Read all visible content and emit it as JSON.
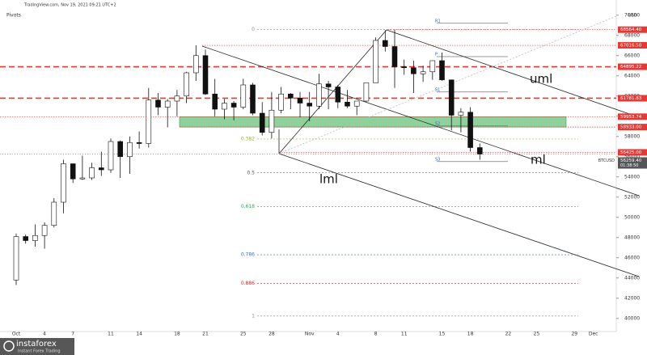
{
  "chart_data": {
    "type": "candlestick",
    "header": "TradingView.com, Nov 19, 2021 09:21 UTC+2",
    "indicator": "Pivots",
    "currency": "USD",
    "categories": [
      "Oct",
      null,
      null,
      "4",
      null,
      null,
      "7",
      null,
      null,
      null,
      "11",
      null,
      null,
      "14",
      null,
      null,
      null,
      "18",
      null,
      null,
      "21",
      null,
      null,
      null,
      "25",
      null,
      null,
      "28",
      null,
      null,
      null,
      "Nov",
      null,
      null,
      "4",
      null,
      null,
      null,
      "8",
      null,
      null,
      "11",
      null,
      null,
      null,
      "15",
      null,
      null,
      "18",
      null,
      null,
      null,
      "22",
      null,
      null,
      "25",
      null,
      null,
      null,
      "29",
      null,
      "Dec"
    ],
    "series": [
      {
        "name": "BTCUSD",
        "open": [
          43800,
          48100,
          47700,
          48200,
          49200,
          51500,
          55300,
          53800,
          53900,
          54900,
          54700,
          57500,
          56000,
          57400,
          57300,
          61600,
          60900,
          61500,
          62000,
          64300,
          66000,
          62200,
          60700,
          61300,
          60900,
          63100,
          60300,
          58400,
          60600,
          62200,
          61800,
          61300,
          61000,
          63200,
          62900,
          61400,
          61000,
          61500,
          63300,
          67500,
          66900,
          64900,
          64800,
          64200,
          64400,
          65500,
          63600,
          60100,
          60400,
          56900,
          null,
          null,
          null,
          null,
          null,
          null,
          null,
          null,
          null,
          null,
          null,
          null
        ],
        "high": [
          48400,
          48300,
          49300,
          49500,
          51900,
          55700,
          55300,
          56100,
          55400,
          56500,
          57800,
          57600,
          58000,
          58500,
          62800,
          62300,
          61700,
          62600,
          64400,
          67016,
          66600,
          63700,
          61700,
          61500,
          63700,
          63300,
          61400,
          62400,
          62900,
          62300,
          62400,
          62400,
          64200,
          63500,
          63100,
          62600,
          61500,
          63300,
          67800,
          68500,
          68564,
          65600,
          65500,
          65000,
          65500,
          66300,
          63600,
          60800,
          60900,
          57300,
          null,
          null,
          null,
          null,
          null,
          null,
          null,
          null,
          null,
          null,
          null,
          null
        ],
        "low": [
          43300,
          47400,
          47100,
          46900,
          49000,
          50400,
          53400,
          53700,
          53700,
          54100,
          54400,
          53900,
          54300,
          56800,
          56900,
          60100,
          58900,
          60000,
          61300,
          63500,
          62100,
          60000,
          59700,
          59600,
          60700,
          60100,
          58100,
          57800,
          60300,
          60700,
          59900,
          59500,
          60700,
          60700,
          60800,
          60800,
          60100,
          61400,
          63300,
          66400,
          62800,
          64100,
          62300,
          63400,
          63600,
          63500,
          58600,
          58400,
          56500,
          55700,
          null,
          null,
          null,
          null,
          null,
          null,
          null,
          null,
          null,
          null,
          null,
          null
        ],
        "close": [
          48100,
          47700,
          48200,
          49200,
          51500,
          55300,
          53800,
          53900,
          54900,
          54700,
          57500,
          56000,
          57400,
          57300,
          61600,
          60900,
          61500,
          62000,
          64300,
          66000,
          62200,
          60700,
          61300,
          60900,
          63100,
          60300,
          58400,
          60600,
          62200,
          61800,
          61300,
          61000,
          63200,
          62900,
          61400,
          61000,
          61500,
          63300,
          67500,
          66900,
          64900,
          64800,
          64200,
          64400,
          65500,
          63600,
          60100,
          60400,
          56900,
          56259.4,
          null,
          null,
          null,
          null,
          null,
          null,
          null,
          null,
          null,
          null,
          null,
          null
        ],
        "up_color": "#ffffff",
        "down_color": "#111111"
      }
    ],
    "ylim": [
      38700,
      70700
    ],
    "yticks": [
      40000,
      42000,
      44000,
      46000,
      48000,
      50000,
      52000,
      54000,
      56000,
      58000,
      60000,
      62000,
      64000,
      66000,
      68000,
      70000
    ],
    "price_tags": [
      {
        "value": 68564.4,
        "label": "68564.40",
        "color": "#e53935",
        "style": "dotted"
      },
      {
        "value": 67016.5,
        "label": "67016.50",
        "color": "#e53935",
        "style": "dotted"
      },
      {
        "value": 64895.22,
        "label": "64895.22",
        "color": "#e53935",
        "style": "dashed"
      },
      {
        "value": 61781.83,
        "label": "61781.83",
        "color": "#e53935",
        "style": "dashed"
      },
      {
        "value": 59953.74,
        "label": "59953.74",
        "color": "#e53935",
        "style": "dotted"
      },
      {
        "value": 58933,
        "label": "58933.00",
        "color": "#e53935",
        "style": "dotted"
      },
      {
        "value": 56425,
        "label": "56425.00",
        "color": "#e53935",
        "style": "dotted"
      }
    ],
    "last_price": {
      "value": 56259.4,
      "label": "56259.40",
      "countdown": "01:38:50",
      "color": "#555555"
    },
    "zone": {
      "color": "#7cc98a"
    },
    "fib_levels": [
      {
        "value": 68564,
        "label": "0",
        "color": "#888888"
      },
      {
        "value": 57743,
        "label": "0.382",
        "color": "#a0b040"
      },
      {
        "value": 54400,
        "label": "0.5",
        "color": "#555555"
      },
      {
        "value": 51057,
        "label": "0.618",
        "color": "#3aa060"
      },
      {
        "value": 46298,
        "label": "0.786",
        "color": "#3a70c0"
      },
      {
        "value": 43465,
        "label": "0.886",
        "color": "#c03030"
      },
      {
        "value": 40236,
        "label": "1",
        "color": "#888888"
      }
    ],
    "pivots": [
      {
        "value": 69200,
        "label": "R1"
      },
      {
        "value": 65900,
        "label": "P"
      },
      {
        "value": 62400,
        "label": "S1"
      },
      {
        "value": 59040,
        "label": "S2"
      },
      {
        "value": 55520,
        "label": "S3"
      }
    ],
    "annotations": [
      "uml",
      "ml",
      "lml"
    ],
    "brand": "instaforex",
    "brand_tagline": "Instant Forex Trading"
  }
}
